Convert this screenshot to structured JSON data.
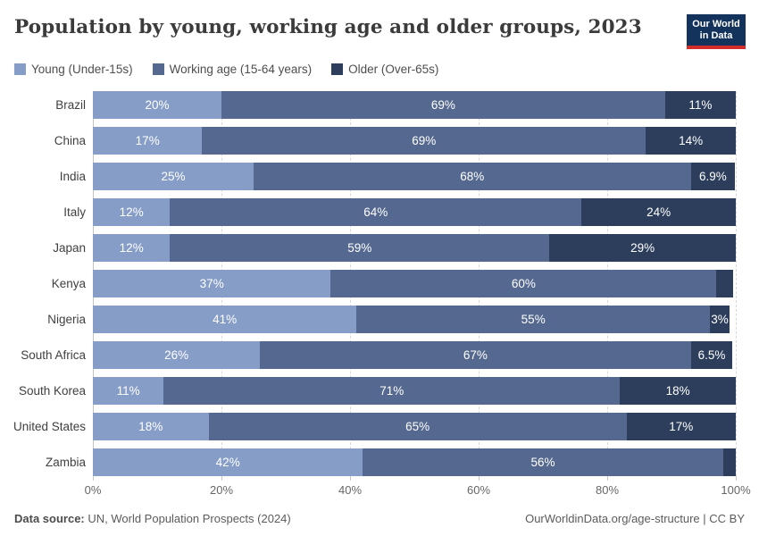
{
  "header": {
    "title": "Population by young, working age and older groups, 2023"
  },
  "logo": {
    "line1": "Our World",
    "line2": "in Data",
    "bg_color": "#14335c",
    "accent_color": "#d42b2b"
  },
  "footer": {
    "source_label": "Data source:",
    "source_text": " UN, World Population Prospects (2024)",
    "credit": "OurWorldinData.org/age-structure | CC BY"
  },
  "chart_data": {
    "type": "bar",
    "stacked": true,
    "orientation": "horizontal",
    "title": "Population by young, working age and older groups, 2023",
    "xlabel": "",
    "ylabel": "",
    "xlim": [
      0,
      100
    ],
    "grid": "vertical-dashed",
    "legend_position": "top",
    "categories": [
      "Brazil",
      "China",
      "India",
      "Italy",
      "Japan",
      "Kenya",
      "Nigeria",
      "South Africa",
      "South Korea",
      "United States",
      "Zambia"
    ],
    "series": [
      {
        "name": "Young (Under-15s)",
        "color": "#869dc8",
        "values": [
          20,
          17,
          25,
          12,
          12,
          37,
          41,
          26,
          11,
          18,
          42
        ],
        "labels": [
          "20%",
          "17%",
          "25%",
          "12%",
          "12%",
          "37%",
          "41%",
          "26%",
          "11%",
          "18%",
          "42%"
        ]
      },
      {
        "name": "Working age (15-64 years)",
        "color": "#55688f",
        "values": [
          69,
          69,
          68,
          64,
          59,
          60,
          55,
          67,
          71,
          65,
          56
        ],
        "labels": [
          "69%",
          "69%",
          "68%",
          "64%",
          "59%",
          "60%",
          "55%",
          "67%",
          "71%",
          "65%",
          "56%"
        ]
      },
      {
        "name": "Older (Over-65s)",
        "color": "#2c3e5c",
        "values": [
          11,
          14,
          6.9,
          24,
          29,
          2.6,
          3,
          6.5,
          18,
          17,
          2
        ],
        "labels": [
          "11%",
          "14%",
          "6.9%",
          "24%",
          "29%",
          "",
          "3%",
          "6.5%",
          "18%",
          "17%",
          ""
        ]
      }
    ],
    "xticks": [
      {
        "value": 0,
        "label": "0%"
      },
      {
        "value": 20,
        "label": "20%"
      },
      {
        "value": 40,
        "label": "40%"
      },
      {
        "value": 60,
        "label": "60%"
      },
      {
        "value": 80,
        "label": "80%"
      },
      {
        "value": 100,
        "label": "100%"
      }
    ]
  }
}
